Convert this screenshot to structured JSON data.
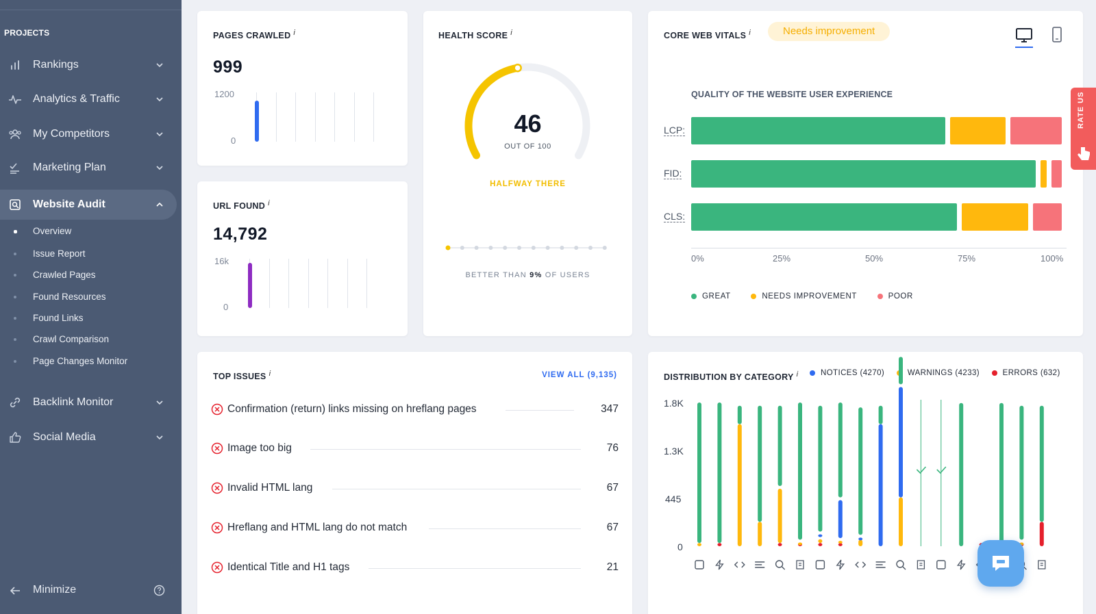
{
  "sidebar": {
    "projects_label": "PROJECTS",
    "items": [
      {
        "label": "Rankings",
        "icon": "bar-chart-icon"
      },
      {
        "label": "Analytics & Traffic",
        "icon": "pulse-icon"
      },
      {
        "label": "My Competitors",
        "icon": "users-icon"
      },
      {
        "label": "Marketing Plan",
        "icon": "checklist-icon"
      },
      {
        "label": "Website Audit",
        "icon": "audit-icon"
      },
      {
        "label": "Backlink Monitor",
        "icon": "link-icon"
      },
      {
        "label": "Social Media",
        "icon": "thumbs-up-icon"
      }
    ],
    "subitems": [
      "Overview",
      "Issue Report",
      "Crawled Pages",
      "Found Resources",
      "Found Links",
      "Crawl Comparison",
      "Page Changes Monitor"
    ],
    "minimize_label": "Minimize"
  },
  "pages_crawled": {
    "title": "PAGES CRAWLED",
    "info": "i",
    "value": "999",
    "axis_top": "1200",
    "axis_bottom": "0",
    "bar_fraction": 0.83,
    "bar_color": "#2f6bf0"
  },
  "url_found": {
    "title": "URL FOUND",
    "info": "i",
    "value": "14,792",
    "axis_top": "16k",
    "axis_bottom": "0",
    "bar_fraction": 0.92,
    "bar_color": "#8e2cc2"
  },
  "health_score": {
    "title": "HEALTH SCORE",
    "info": "i",
    "score": "46",
    "score_value": 46,
    "out_of": "OUT OF 100",
    "status": "HALFWAY THERE",
    "better_prefix": "BETTER THAN",
    "better_pct": "9%",
    "better_suffix": "OF USERS",
    "accent": "#f5c400"
  },
  "core_web_vitals": {
    "title": "CORE WEB VITALS",
    "info": "i",
    "badge": "Needs improvement",
    "subtitle": "QUALITY OF THE WEBSITE USER EXPERIENCE",
    "metrics": [
      {
        "label": "LCP:",
        "great": 69,
        "needs": 16,
        "poor": 15
      },
      {
        "label": "FID:",
        "great": 93,
        "needs": 3,
        "poor": 4
      },
      {
        "label": "CLS:",
        "great": 72,
        "needs": 19,
        "poor": 9
      }
    ],
    "x_ticks": [
      "0%",
      "25%",
      "50%",
      "75%",
      "100%"
    ],
    "legend": [
      "GREAT",
      "NEEDS IMPROVEMENT",
      "POOR"
    ],
    "colors": {
      "great": "#3ab57e",
      "needs": "#ffb80d",
      "poor": "#f6737a"
    }
  },
  "top_issues": {
    "title": "TOP ISSUES",
    "info": "i",
    "view_all": "VIEW ALL (9,135)",
    "rows": [
      {
        "label": "Confirmation (return) links missing on hreflang pages",
        "count": "347"
      },
      {
        "label": "Image too big",
        "count": "76"
      },
      {
        "label": "Invalid HTML lang",
        "count": "67"
      },
      {
        "label": "Hreflang and HTML lang do not match",
        "count": "67"
      },
      {
        "label": "Identical Title and H1 tags",
        "count": "21"
      }
    ]
  },
  "distribution": {
    "title": "DISTRIBUTION BY CATEGORY",
    "info": "i",
    "legend": [
      {
        "label": "NOTICES (4270)",
        "color": "#2f6bf0"
      },
      {
        "label": "WARNINGS (4233)",
        "color": "#ffb80d"
      },
      {
        "label": "ERRORS (632)",
        "color": "#e5202c"
      }
    ],
    "y_ticks": [
      "1.8K",
      "1.3K",
      "445",
      "0"
    ]
  },
  "chart_data": {
    "type": "bar",
    "title": "DISTRIBUTION BY CATEGORY",
    "ylim": [
      0,
      1800
    ],
    "y_ticks": [
      0,
      445,
      1300,
      1800
    ],
    "categories": [
      "cat-1",
      "cat-2",
      "cat-3",
      "cat-4",
      "cat-5",
      "cat-6",
      "cat-7",
      "cat-8",
      "cat-9",
      "cat-10",
      "cat-11",
      "cat-12",
      "cat-13",
      "cat-14",
      "cat-15",
      "cat-16",
      "cat-17",
      "cat-18"
    ],
    "series": [
      {
        "name": "NOTICES",
        "color": "#2f6bf0",
        "values": [
          0,
          0,
          0,
          0,
          0,
          0,
          60,
          500,
          60,
          1500,
          1390,
          0,
          0,
          0,
          0,
          0,
          0,
          0
        ]
      },
      {
        "name": "WARNINGS",
        "color": "#ffb80d",
        "values": [
          40,
          0,
          1500,
          300,
          700,
          40,
          80,
          60,
          80,
          0,
          600,
          0,
          0,
          0,
          0,
          0,
          40,
          0
        ]
      },
      {
        "name": "ERRORS",
        "color": "#e5202c",
        "values": [
          0,
          40,
          0,
          0,
          40,
          40,
          40,
          40,
          0,
          0,
          0,
          0,
          0,
          0,
          40,
          0,
          40,
          300
        ]
      },
      {
        "name": "GREAT",
        "color": "#3ab57e",
        "values": [
          1760,
          1760,
          260,
          1460,
          1020,
          1720,
          1580,
          1200,
          1600,
          260,
          370,
          0,
          0,
          1760,
          0,
          1760,
          1680,
          1460
        ]
      }
    ],
    "checks": [
      11,
      12
    ]
  },
  "rate_us": "RATE US"
}
